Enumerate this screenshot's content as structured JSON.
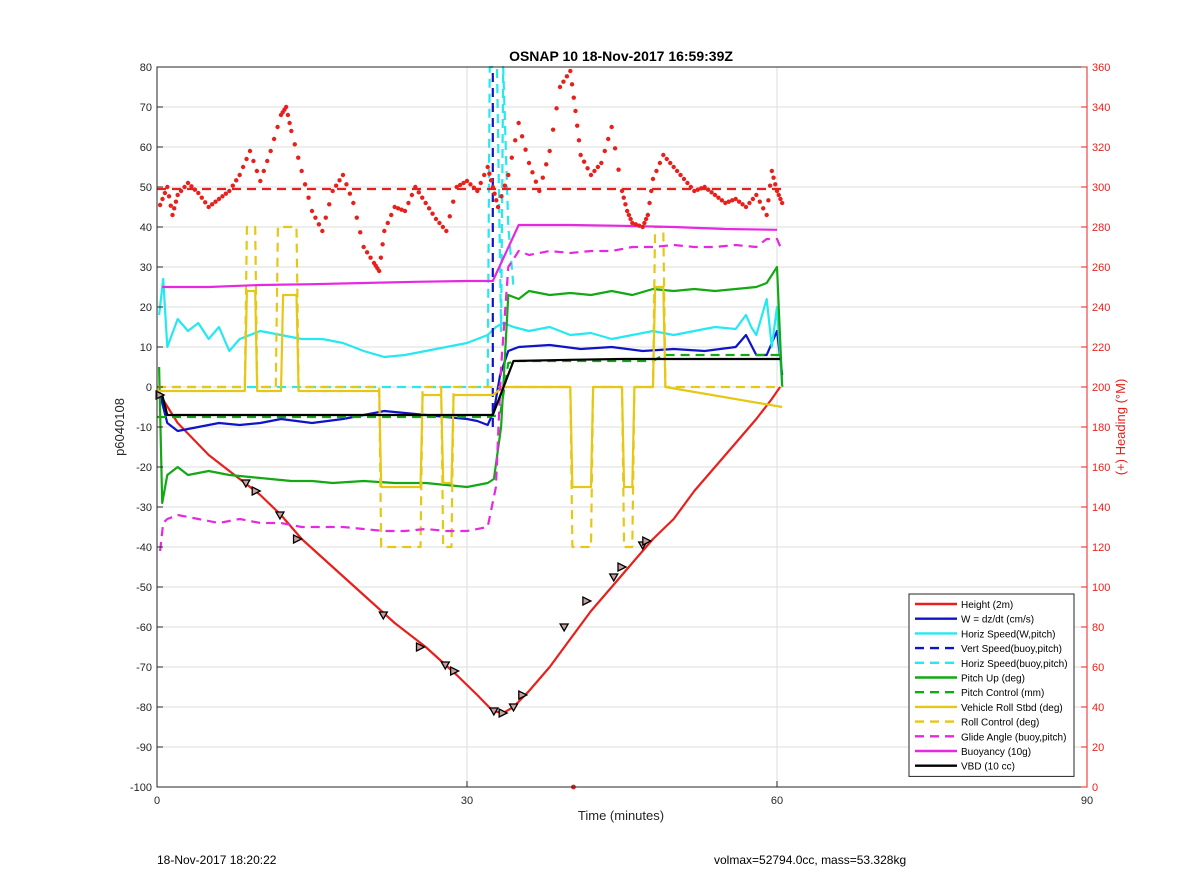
{
  "chart_data": {
    "type": "line",
    "title": "OSNAP 10 18-Nov-2017 16:59:39Z",
    "xlabel": "Time (minutes)",
    "ylabel": "p6040108",
    "y2label": "(+) Heading (°M)",
    "xlim": [
      0,
      90
    ],
    "ylim": [
      -100,
      80
    ],
    "y2lim": [
      0,
      360
    ],
    "xticks": [
      0,
      30,
      60,
      90
    ],
    "yticks": [
      -100,
      -90,
      -80,
      -70,
      -60,
      -50,
      -40,
      -30,
      -20,
      -10,
      0,
      10,
      20,
      30,
      40,
      50,
      60,
      70,
      80
    ],
    "y2ticks": [
      0,
      20,
      40,
      60,
      80,
      100,
      120,
      140,
      160,
      180,
      200,
      220,
      240,
      260,
      280,
      300,
      320,
      340,
      360
    ],
    "grid": true,
    "legend_position": "bottom-right",
    "colors": {
      "red": "#e8201c",
      "blue": "#0f14c8",
      "cyan": "#25e8f0",
      "green": "#14a814",
      "yellow": "#e6c814",
      "magenta": "#e628e0",
      "black": "#000000"
    },
    "series": [
      {
        "name": "Height (2m)",
        "color": "red",
        "style": "solid",
        "axis": "left",
        "x": [
          0.3,
          2,
          5,
          8,
          10,
          12,
          14,
          17,
          20,
          23,
          26,
          29,
          31,
          32.5,
          33.5,
          34.5,
          36,
          38,
          40,
          42,
          44,
          46,
          48,
          50,
          52,
          54,
          56,
          58,
          59.5,
          60.3
        ],
        "y": [
          -2,
          -9,
          -17,
          -23,
          -27,
          -32,
          -38,
          -45,
          -52,
          -59,
          -65,
          -72,
          -77,
          -81,
          -81.5,
          -80,
          -76,
          -70,
          -63,
          -56,
          -50,
          -44,
          -38,
          -33,
          -26,
          -20,
          -14,
          -8,
          -3,
          0
        ]
      },
      {
        "name": "W = dz/dt (cm/s)",
        "color": "blue",
        "style": "solid",
        "axis": "left",
        "x": [
          0.3,
          1,
          2,
          4,
          6,
          8,
          10,
          12,
          15,
          18,
          20,
          22,
          24,
          26,
          28,
          30,
          31,
          32,
          32.6,
          33.2,
          34,
          35,
          38,
          41,
          44,
          47,
          50,
          53,
          56,
          57,
          58,
          59,
          60,
          60.5
        ],
        "y": [
          -2,
          -9,
          -11,
          -10,
          -9,
          -9.5,
          -9,
          -8,
          -9,
          -8,
          -7,
          -6,
          -6.5,
          -7,
          -7.5,
          -8,
          -8.5,
          -9.5,
          -6,
          3,
          9,
          10,
          10.5,
          9.5,
          10,
          9,
          9.5,
          9,
          10,
          13,
          8,
          8,
          14,
          3
        ]
      },
      {
        "name": "Horiz Speed(W,pitch)",
        "color": "cyan",
        "style": "solid",
        "axis": "left",
        "x": [
          0.2,
          0.6,
          1,
          2,
          3,
          4,
          5,
          6,
          7,
          8,
          10,
          12,
          14,
          16,
          18,
          20,
          22,
          24,
          26,
          28,
          30,
          32,
          32.8,
          33.5,
          34.5,
          36,
          38,
          40,
          42,
          44,
          46,
          48,
          50,
          52,
          54,
          56,
          57,
          57.5,
          58,
          59,
          59.5,
          60,
          60.5
        ],
        "y": [
          18,
          27,
          10,
          17,
          14,
          16,
          12,
          15,
          9,
          12,
          14,
          13,
          12,
          12,
          11,
          9,
          7.5,
          8,
          9,
          10,
          11,
          13,
          15,
          16,
          15,
          14,
          15,
          13,
          13.5,
          12,
          13,
          14,
          13,
          14,
          15,
          14.5,
          18,
          15,
          13,
          22,
          10,
          20,
          0
        ]
      },
      {
        "name": "Vert Speed(buoy,pitch)",
        "color": "blue",
        "style": "dashed",
        "axis": "left",
        "x": [
          32.5,
          32.5
        ],
        "y": [
          -10,
          80
        ]
      },
      {
        "name": "Horiz Speed(buoy,pitch)",
        "color": "cyan",
        "style": "dashed",
        "axis": "left",
        "x": [
          0,
          32,
          32.2,
          32.5,
          32.9,
          33.3,
          33.5,
          34,
          34.5
        ],
        "y": [
          0,
          0,
          80,
          80,
          80,
          14,
          80,
          40,
          25
        ]
      },
      {
        "name": "Pitch Up (deg)",
        "color": "green",
        "style": "solid",
        "axis": "left",
        "x": [
          0.2,
          0.5,
          1,
          2,
          3,
          5,
          7,
          9,
          11,
          13,
          15,
          17,
          20,
          23,
          26,
          28,
          30,
          32,
          32.6,
          33.3,
          34,
          35,
          36,
          38,
          40,
          42,
          44,
          46,
          48,
          50,
          52,
          54,
          56,
          58,
          59,
          60,
          60.5
        ],
        "y": [
          5,
          -29,
          -22,
          -20,
          -22,
          -21,
          -22,
          -22.5,
          -23,
          -23.5,
          -23.5,
          -24,
          -23.5,
          -24,
          -24,
          -24.5,
          -25,
          -24,
          -23,
          -10,
          23,
          22,
          24,
          23,
          23.5,
          23,
          24,
          23,
          24.5,
          24,
          24.5,
          24,
          24.5,
          25,
          26,
          30,
          0
        ]
      },
      {
        "name": "Pitch Control (mm)",
        "color": "green",
        "style": "dashed",
        "axis": "left",
        "x": [
          0,
          32,
          33.2,
          34,
          35,
          48,
          49,
          60.5
        ],
        "y": [
          -7.5,
          -7.5,
          -7,
          6,
          6.5,
          6.5,
          8,
          8
        ]
      },
      {
        "name": "Vehicle Roll Stbd (deg)",
        "color": "yellow",
        "style": "solid",
        "axis": "left",
        "x": [
          0,
          8.5,
          8.7,
          9.5,
          9.7,
          12,
          12.2,
          13.5,
          13.7,
          21.5,
          21.7,
          25.5,
          25.7,
          27.5,
          27.7,
          28.5,
          28.7,
          32.5,
          33.5,
          34,
          40,
          40.2,
          42,
          42.2,
          45,
          45.2,
          46,
          46.2,
          48,
          48.2,
          49,
          49.2,
          60.5
        ],
        "y": [
          -1,
          -1,
          24,
          24,
          -1,
          -1,
          23,
          23,
          -1,
          -1,
          -25,
          -25,
          -2,
          -2,
          -24,
          -24,
          -2,
          -2,
          0,
          0,
          0,
          -25,
          -25,
          0,
          0,
          -25,
          -25,
          0,
          0,
          25,
          25,
          0,
          -5
        ]
      },
      {
        "name": "Roll Control (deg)",
        "color": "yellow",
        "style": "dashed",
        "axis": "left",
        "x": [
          0,
          8.5,
          8.7,
          9.5,
          9.7,
          11.5,
          11.7,
          13.5,
          13.7,
          21.5,
          21.7,
          25.5,
          25.7,
          27.5,
          27.7,
          28.5,
          28.7,
          32.5,
          33.5,
          34,
          40,
          40.2,
          42,
          42.2,
          45,
          45.2,
          46,
          46.2,
          48,
          48.2,
          49,
          49.2,
          60.5
        ],
        "y": [
          0,
          0,
          40,
          40,
          0,
          0,
          40,
          40,
          0,
          0,
          -40,
          -40,
          0,
          0,
          -40,
          -40,
          0,
          0,
          0,
          0,
          0,
          -40,
          -40,
          0,
          0,
          -40,
          -40,
          0,
          0,
          40,
          40,
          0,
          0
        ]
      },
      {
        "name": "Glide Angle (buoy,pitch)",
        "color": "magenta",
        "style": "dashed",
        "axis": "left",
        "x": [
          0.3,
          0.6,
          1,
          2,
          4,
          6,
          8,
          10,
          12,
          14,
          16,
          18,
          20,
          22,
          24,
          26,
          28,
          30,
          32,
          32.8,
          33.3,
          34,
          35,
          36,
          38,
          40,
          42,
          44,
          46,
          48,
          50,
          52,
          54,
          56,
          58,
          59,
          60,
          60.5
        ],
        "y": [
          -41,
          -34,
          -33,
          -32,
          -33,
          -34,
          -33,
          -34,
          -34,
          -35,
          -35,
          -35,
          -35.5,
          -36,
          -36,
          -35.5,
          -36,
          -36,
          -35,
          -25,
          5,
          30,
          34,
          33,
          34,
          33.5,
          34,
          34,
          35,
          35,
          35.5,
          35,
          35,
          35.5,
          35,
          37,
          37,
          34
        ]
      },
      {
        "name": "Buoyancy (10g)",
        "color": "magenta",
        "style": "solid",
        "axis": "left",
        "x": [
          0.5,
          5,
          10,
          15,
          20,
          25,
          30,
          32.5,
          35,
          40,
          45,
          50,
          55,
          60
        ],
        "y": [
          25,
          25,
          25.5,
          25.7,
          26,
          26.3,
          26.5,
          26.5,
          40.5,
          40.5,
          40.3,
          40,
          39.5,
          39.3
        ]
      },
      {
        "name": "VBD (10 cc)",
        "color": "black",
        "style": "solid",
        "axis": "left",
        "x": [
          0.5,
          1,
          5,
          10,
          15,
          20,
          25,
          30,
          32.5,
          34.5,
          40,
          45,
          50,
          55,
          60.3
        ],
        "y": [
          -2,
          -7,
          -7,
          -7,
          -7,
          -7,
          -7,
          -7,
          -7,
          6.5,
          6.8,
          7,
          7,
          7,
          7
        ]
      },
      {
        "name": "",
        "color": "red",
        "style": "dashed",
        "axis": "right",
        "x": [
          0,
          60.5
        ],
        "y": [
          299,
          299
        ]
      },
      {
        "name": "",
        "color": "red",
        "style": "dotted",
        "axis": "right",
        "x": [
          0.3,
          1,
          1.5,
          2,
          3,
          4,
          5,
          6,
          7,
          8,
          9,
          10,
          11,
          12,
          12.5,
          13,
          14,
          15,
          16,
          17,
          18,
          19,
          20,
          21,
          21.5,
          22,
          23,
          24,
          25,
          26,
          27,
          28,
          29,
          30,
          31,
          32,
          32.5,
          33,
          34,
          35,
          36,
          37,
          38,
          39,
          40,
          40.5,
          41,
          42,
          43,
          44,
          45,
          45.5,
          46,
          47,
          47.5,
          48,
          49,
          50,
          51,
          52,
          53,
          54,
          55,
          56,
          57,
          58,
          59,
          59.5,
          60,
          60.5
        ],
        "y": [
          291,
          300,
          286,
          296,
          302,
          297,
          290,
          294,
          298,
          306,
          318,
          303,
          318,
          336,
          340,
          328,
          308,
          288,
          278,
          298,
          306,
          292,
          270,
          262,
          258,
          278,
          290,
          288,
          300,
          292,
          284,
          278,
          300,
          303,
          298,
          310,
          300,
          290,
          306,
          332,
          312,
          298,
          318,
          350,
          358,
          338,
          316,
          306,
          312,
          330,
          298,
          288,
          282,
          280,
          286,
          304,
          316,
          310,
          304,
          298,
          300,
          296,
          292,
          294,
          290,
          296,
          286,
          308,
          298,
          292
        ]
      }
    ],
    "markers": {
      "color": "black",
      "x": [
        0.3,
        8.6,
        9.6,
        11.9,
        13.6,
        21.9,
        25.5,
        27.9,
        28.8,
        32.6,
        33.5,
        34.5,
        35.4,
        39.4,
        41.6,
        44.2,
        45.0,
        47.0,
        47.4
      ],
      "y": [
        -2,
        -24,
        -26,
        -32,
        -38,
        -57,
        -65,
        -69.5,
        -71,
        -81,
        -81.5,
        -80,
        -77,
        -60,
        -53.5,
        -47.5,
        -45,
        -39.5,
        -38.5
      ]
    },
    "extra_points": {
      "color": "red",
      "x": [
        40.3
      ],
      "y": [
        -100
      ]
    },
    "footer_left": "18-Nov-2017 18:20:22",
    "footer_right": "volmax=52794.0cc, mass=53.328kg"
  }
}
